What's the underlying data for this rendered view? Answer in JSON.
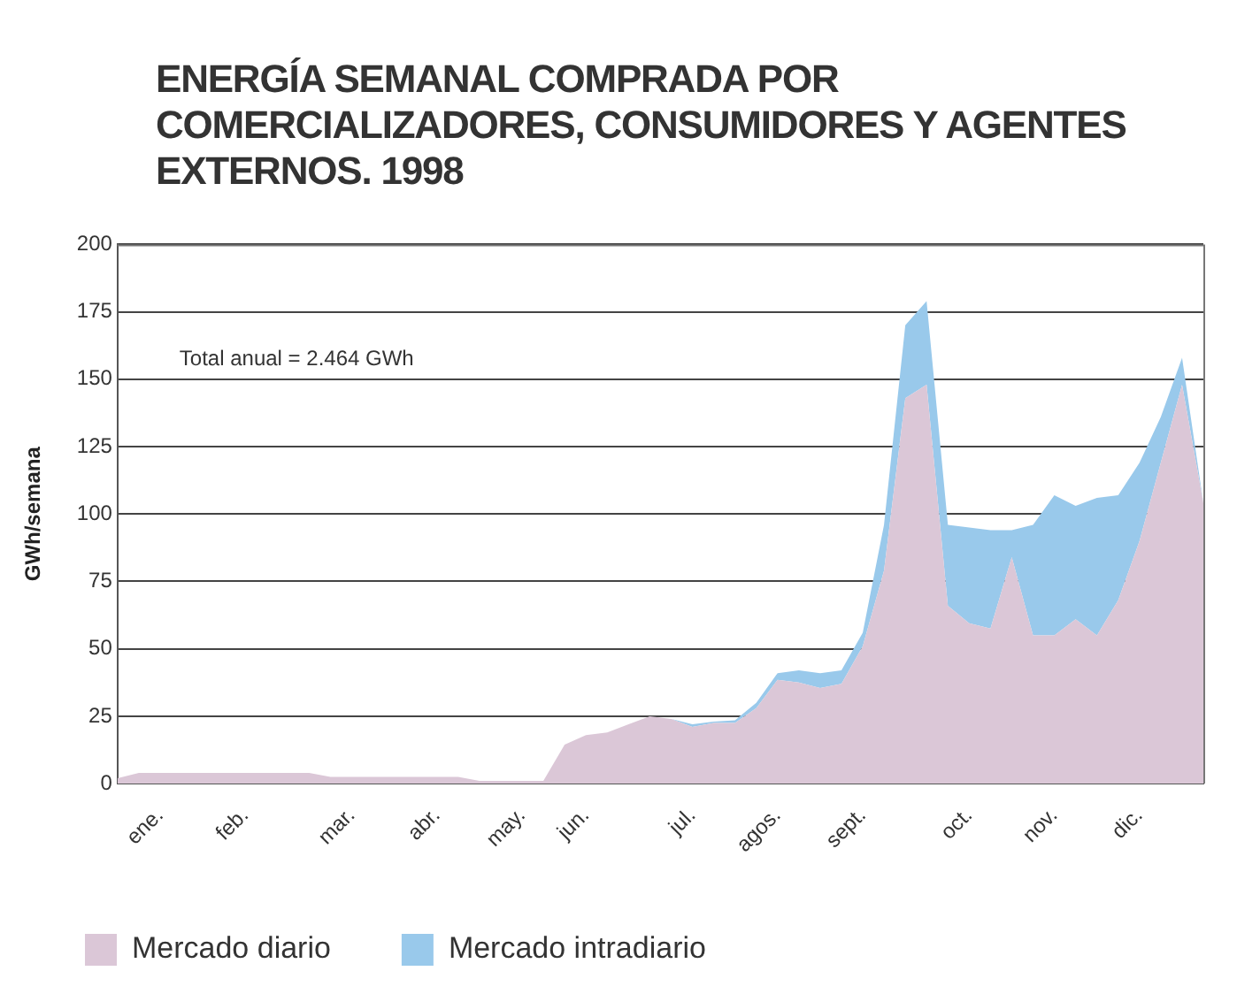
{
  "chart_data": {
    "type": "area",
    "title": "ENERGÍA SEMANAL COMPRADA POR COMERCIALIZADORES, CONSUMIDORES Y AGENTES EXTERNOS. 1998",
    "ylabel": "GWh/semana",
    "stacked": true,
    "categories": [
      null,
      null,
      "ene.",
      null,
      null,
      null,
      "feb.",
      null,
      null,
      null,
      null,
      "mar.",
      null,
      null,
      null,
      "abr.",
      null,
      null,
      null,
      "may.",
      null,
      null,
      "jun.",
      null,
      null,
      null,
      null,
      "jul.",
      null,
      null,
      null,
      "agos.",
      null,
      null,
      null,
      "sept.",
      null,
      null,
      null,
      null,
      "oct.",
      null,
      null,
      null,
      "nov.",
      null,
      null,
      null,
      "dic.",
      null,
      null,
      null
    ],
    "series": [
      {
        "name": "Mercado diario",
        "color": "#dbc7d7",
        "values": [
          2,
          4,
          4,
          4,
          4,
          4,
          4,
          4,
          4,
          4,
          2.5,
          2.5,
          2.5,
          2.5,
          2.5,
          2.5,
          2.5,
          1,
          1,
          1,
          1,
          14.5,
          18,
          19,
          22,
          25,
          24,
          21,
          22.5,
          22.5,
          28,
          38.5,
          37.5,
          35.5,
          37,
          51,
          79,
          143,
          148,
          66,
          59.5,
          57.5,
          84,
          55,
          55,
          61,
          55,
          68,
          90,
          119,
          148,
          104
        ]
      },
      {
        "name": "Mercado intradiario",
        "color": "#99c9eb",
        "values": [
          0,
          0,
          0,
          0,
          0,
          0,
          0,
          0,
          0,
          0,
          0,
          0,
          0,
          0,
          0,
          0,
          0,
          0,
          0,
          0,
          0,
          0,
          0,
          0,
          0,
          0,
          0,
          1,
          0.5,
          1,
          2,
          2.5,
          4.5,
          5.5,
          5,
          5,
          17,
          27,
          31,
          30,
          35.5,
          36.5,
          10,
          41,
          52,
          42,
          51,
          39,
          29,
          17,
          10,
          0
        ]
      }
    ],
    "ylim": [
      0,
      200
    ],
    "yticks": [
      0,
      25,
      50,
      75,
      100,
      125,
      150,
      175,
      200
    ],
    "grid": "y",
    "legend": "bottom left",
    "annotations": [
      "Total anual = 2.464 GWh"
    ]
  }
}
